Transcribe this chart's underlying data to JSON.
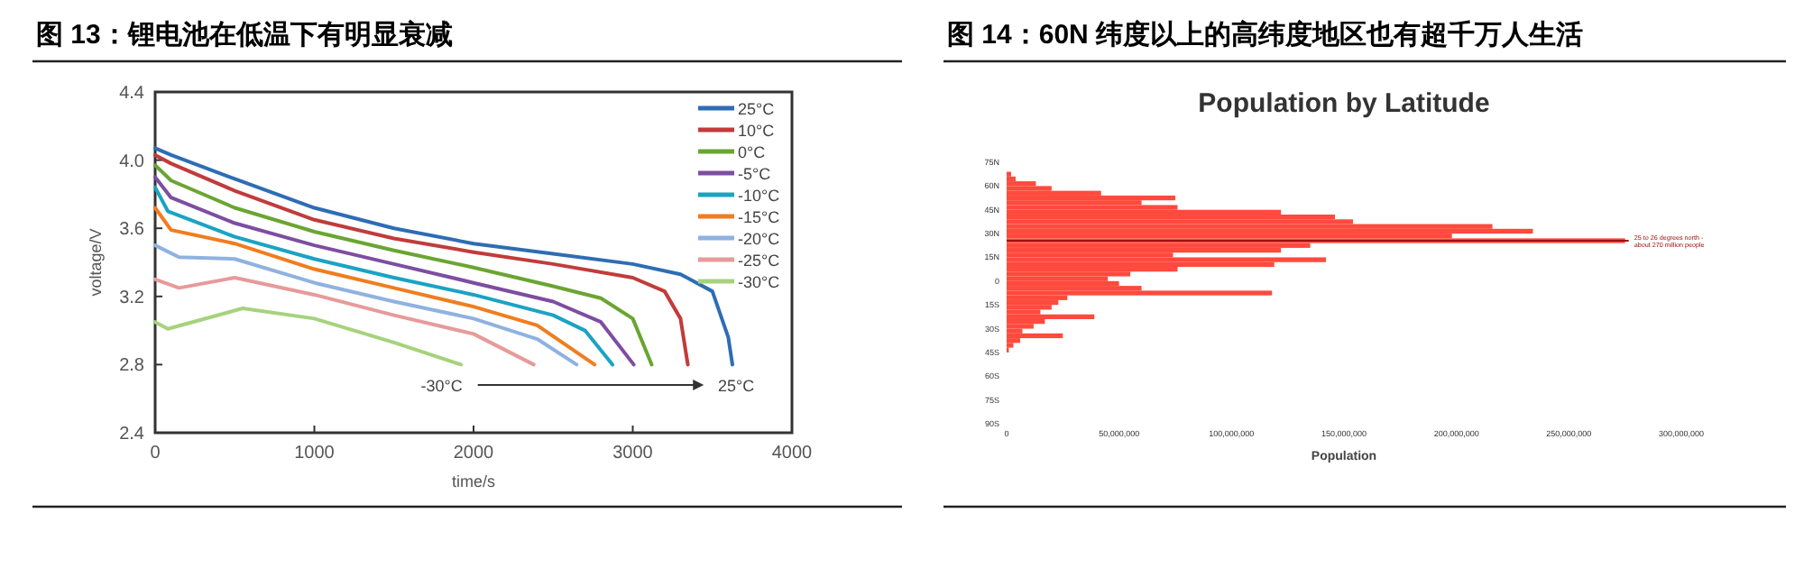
{
  "chart_data": [
    {
      "type": "line",
      "title": "图 13：锂电池在低温下有明显衰减",
      "xlabel": "time/s",
      "ylabel": "voltage/V",
      "xlim": [
        0,
        4000
      ],
      "ylim": [
        2.4,
        4.4
      ],
      "xticks": [
        0,
        1000,
        2000,
        3000,
        4000
      ],
      "yticks": [
        {
          "value": 2.4,
          "label": "2.4"
        },
        {
          "value": 2.8,
          "label": "2.8"
        },
        {
          "value": 3.2,
          "label": "3.2"
        },
        {
          "value": 3.6,
          "label": "3.6"
        },
        {
          "value": 4,
          "label": "4.0"
        },
        {
          "value": 4.4,
          "label": "4.4"
        }
      ],
      "legend": "top right",
      "grid": false,
      "series": [
        {
          "name": "25°C",
          "color": "#2e6db4",
          "x": [
            0,
            100,
            500,
            1000,
            1500,
            2000,
            2500,
            3000,
            3300,
            3500,
            3600,
            3626
          ],
          "values": [
            4.07,
            4.03,
            3.89,
            3.72,
            3.6,
            3.51,
            3.45,
            3.39,
            3.33,
            3.23,
            2.96,
            2.8
          ]
        },
        {
          "name": "10°C",
          "color": "#c23b3b",
          "x": [
            0,
            100,
            500,
            1000,
            1500,
            2000,
            2500,
            3000,
            3200,
            3300,
            3346
          ],
          "values": [
            4.03,
            3.98,
            3.82,
            3.65,
            3.54,
            3.46,
            3.39,
            3.31,
            3.23,
            3.07,
            2.8
          ]
        },
        {
          "name": "0°C",
          "color": "#6aa532",
          "x": [
            0,
            100,
            500,
            1000,
            1500,
            2000,
            2500,
            2800,
            3000,
            3119
          ],
          "values": [
            3.97,
            3.88,
            3.72,
            3.58,
            3.47,
            3.37,
            3.26,
            3.19,
            3.07,
            2.8
          ]
        },
        {
          "name": "-5°C",
          "color": "#7d4ea0",
          "x": [
            0,
            100,
            500,
            1000,
            1500,
            2000,
            2500,
            2800,
            3006
          ],
          "values": [
            3.9,
            3.78,
            3.63,
            3.5,
            3.39,
            3.28,
            3.17,
            3.05,
            2.8
          ]
        },
        {
          "name": "-10°C",
          "color": "#1aa3c4",
          "x": [
            0,
            80,
            500,
            1000,
            1500,
            2000,
            2500,
            2700,
            2873
          ],
          "values": [
            3.84,
            3.7,
            3.55,
            3.42,
            3.31,
            3.21,
            3.09,
            3.0,
            2.8
          ]
        },
        {
          "name": "-15°C",
          "color": "#f07d1f",
          "x": [
            0,
            100,
            500,
            1000,
            1500,
            2000,
            2400,
            2760
          ],
          "values": [
            3.72,
            3.59,
            3.51,
            3.36,
            3.25,
            3.14,
            3.03,
            2.8
          ]
        },
        {
          "name": "-20°C",
          "color": "#8fb2e0",
          "x": [
            0,
            150,
            500,
            1000,
            1500,
            2000,
            2400,
            2647
          ],
          "values": [
            3.5,
            3.43,
            3.42,
            3.28,
            3.17,
            3.07,
            2.95,
            2.8
          ]
        },
        {
          "name": "-25°C",
          "color": "#e79a9a",
          "x": [
            0,
            150,
            500,
            1000,
            1500,
            2000,
            2378
          ],
          "values": [
            3.3,
            3.25,
            3.31,
            3.21,
            3.09,
            2.98,
            2.8
          ]
        },
        {
          "name": "-30°C",
          "color": "#a6d27c",
          "x": [
            0,
            80,
            550,
            1000,
            1500,
            1921
          ],
          "values": [
            3.05,
            3.01,
            3.13,
            3.07,
            2.93,
            2.8
          ]
        }
      ],
      "annotations": [
        "-30°C",
        "25°C"
      ]
    },
    {
      "type": "histogram",
      "orientation": "horizontal",
      "title": "图 14：60N 纬度以上的高纬度地区也有超千万人生活",
      "subtitle": "Population by Latitude",
      "xlabel": "Population",
      "color": "#ff4a3d",
      "bins": [
        -45,
        -42,
        -39,
        -36,
        -33,
        -30,
        -27,
        -24,
        -21,
        -18,
        -15,
        -12,
        -9,
        -6,
        -3,
        0,
        3,
        6,
        9,
        12,
        15,
        18,
        21,
        24,
        27,
        30,
        33,
        36,
        39,
        42,
        45,
        48,
        51,
        54,
        57,
        60,
        63,
        66,
        69
      ],
      "values": [
        1000000,
        3000000,
        6000000,
        25000000,
        7000000,
        12000000,
        17000000,
        39000000,
        15000000,
        20000000,
        23000000,
        27000000,
        118000000,
        60000000,
        50000000,
        45000000,
        55000000,
        76000000,
        119000000,
        142000000,
        74000000,
        122000000,
        135000000,
        275000000,
        198000000,
        234000000,
        216000000,
        154000000,
        146000000,
        122000000,
        76000000,
        60000000,
        75000000,
        42000000,
        20000000,
        13000000,
        4000000,
        2000000
      ],
      "xlim": [
        0,
        300000000
      ],
      "ylim": [
        -90,
        75
      ],
      "xticks": [
        {
          "value": 0,
          "label": "0"
        },
        {
          "value": 50000000,
          "label": "50,000,000"
        },
        {
          "value": 100000000,
          "label": "100,000,000"
        },
        {
          "value": 150000000,
          "label": "150,000,000"
        },
        {
          "value": 200000000,
          "label": "200,000,000"
        },
        {
          "value": 250000000,
          "label": "250,000,000"
        },
        {
          "value": 300000000,
          "label": "300,000,000"
        }
      ],
      "yticks": [
        {
          "value": 75,
          "label": "75N"
        },
        {
          "value": 60,
          "label": "60N"
        },
        {
          "value": 45,
          "label": "45N"
        },
        {
          "value": 30,
          "label": "30N"
        },
        {
          "value": 15,
          "label": "15N"
        },
        {
          "value": 0,
          "label": "0"
        },
        {
          "value": -15,
          "label": "15S"
        },
        {
          "value": -30,
          "label": "30S"
        },
        {
          "value": -45,
          "label": "45S"
        },
        {
          "value": -60,
          "label": "60S"
        },
        {
          "value": -75,
          "label": "75S"
        },
        {
          "value": -90,
          "label": "90S"
        }
      ],
      "ref_lines": [
        {
          "axis": "y",
          "value": 25.5,
          "color": "#a01010",
          "label": "25 to 26 degrees north - about 270 million people"
        }
      ]
    }
  ]
}
